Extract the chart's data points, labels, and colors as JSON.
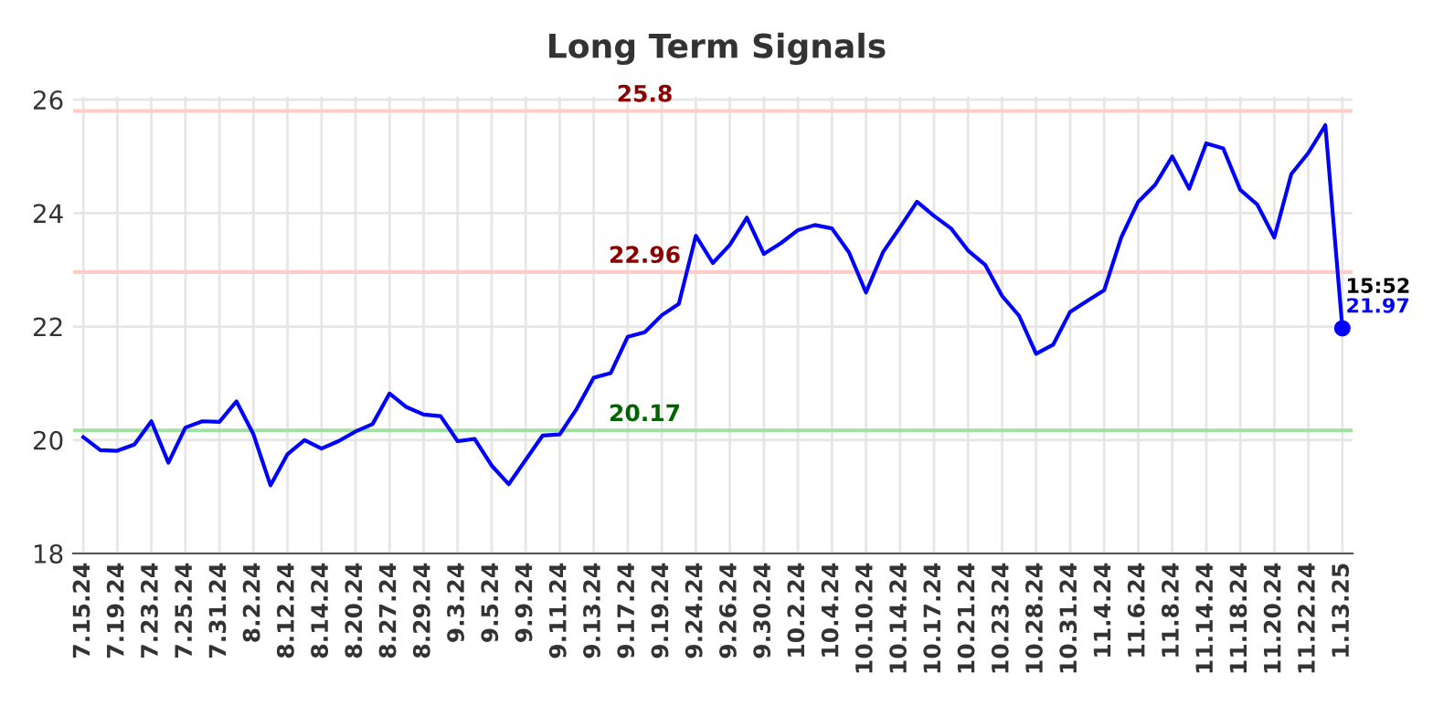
{
  "chart_data": {
    "type": "line",
    "title": "Long Term Signals",
    "categories": [
      "7.15.24",
      null,
      "7.19.24",
      null,
      "7.23.24",
      null,
      "7.25.24",
      null,
      "7.31.24",
      null,
      "8.2.24",
      null,
      "8.12.24",
      null,
      "8.14.24",
      null,
      "8.20.24",
      null,
      "8.27.24",
      null,
      "8.29.24",
      null,
      "9.3.24",
      null,
      "9.5.24",
      null,
      "9.9.24",
      null,
      "9.11.24",
      null,
      "9.13.24",
      null,
      "9.17.24",
      null,
      "9.19.24",
      null,
      "9.24.24",
      null,
      "9.26.24",
      null,
      "9.30.24",
      null,
      "10.2.24",
      null,
      "10.4.24",
      null,
      "10.10.24",
      null,
      "10.14.24",
      null,
      "10.17.24",
      null,
      "10.21.24",
      null,
      "10.23.24",
      null,
      "10.28.24",
      null,
      "10.31.24",
      null,
      "11.4.24",
      null,
      "11.6.24",
      null,
      "11.8.24",
      null,
      "11.14.24",
      null,
      "11.18.24",
      null,
      "11.20.24",
      null,
      "11.22.24",
      null,
      "1.13.25"
    ],
    "series": [
      {
        "color": "#0000ff",
        "values": [
          20.05,
          19.82,
          19.81,
          19.92,
          20.33,
          19.6,
          20.22,
          20.33,
          20.32,
          20.68,
          20.1,
          19.2,
          19.75,
          20.0,
          19.85,
          19.98,
          20.15,
          20.28,
          20.82,
          20.58,
          20.45,
          20.42,
          19.98,
          20.02,
          19.55,
          19.22,
          19.65,
          20.08,
          20.1,
          20.55,
          21.1,
          21.18,
          21.82,
          21.9,
          22.2,
          22.4,
          23.6,
          23.12,
          23.44,
          23.92,
          23.28,
          23.47,
          23.7,
          23.79,
          23.73,
          23.31,
          22.6,
          23.31,
          23.75,
          24.2,
          23.95,
          23.73,
          23.34,
          23.09,
          22.54,
          22.19,
          21.52,
          21.68,
          22.26,
          22.45,
          22.64,
          23.57,
          24.2,
          24.5,
          25.0,
          24.43,
          25.23,
          25.14,
          24.41,
          24.15,
          23.57,
          24.69,
          25.06,
          25.55,
          21.97
        ]
      },
      {
        "type": "scatter",
        "color": "#0000ff",
        "x": [
          "1.13.25"
        ],
        "values": [
          21.97
        ],
        "value_labels": [
          "21.97"
        ]
      }
    ],
    "ylim": [
      18,
      26.05
    ],
    "yticks": [
      18,
      20,
      22,
      24,
      26
    ],
    "grid": true,
    "ref_lines": [
      {
        "axis": "y",
        "value": 25.8,
        "label": "25.8",
        "color": "#ffcccc"
      },
      {
        "axis": "y",
        "value": 22.96,
        "label": "22.96",
        "color": "#ffcccc"
      },
      {
        "axis": "y",
        "value": 20.17,
        "label": "20.17",
        "color": "#a0e0a0"
      }
    ],
    "annotations": [
      {
        "text": "15:52",
        "x": "1.13.25",
        "y": 21.97
      }
    ]
  }
}
